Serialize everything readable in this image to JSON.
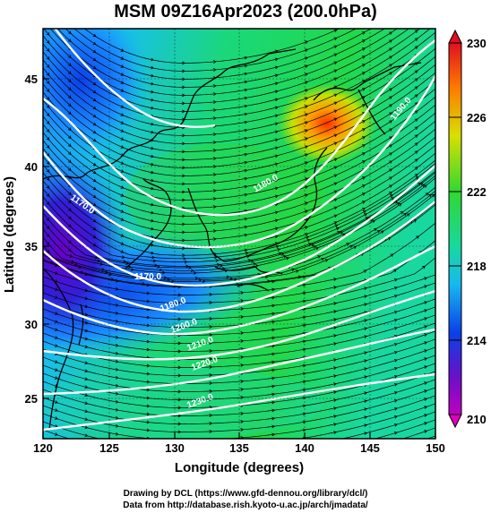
{
  "title": "MSM 09Z16Apr2023 (200.0hPa)",
  "axes": {
    "xlabel": "Longitude (degrees)",
    "ylabel": "Latitude  (degrees)",
    "xticks": [
      "120",
      "125",
      "130",
      "135",
      "140",
      "145",
      "150"
    ],
    "yticks": [
      "45",
      "40",
      "35",
      "30",
      "25"
    ],
    "x_range": [
      120,
      150
    ],
    "y_range": [
      22.4,
      47.6
    ]
  },
  "colorbar": {
    "labels": [
      "230",
      "226",
      "222",
      "218",
      "214",
      "210"
    ],
    "range": [
      210,
      230
    ]
  },
  "contour_labels": [
    "1170.0",
    "1170.0",
    "1180.0",
    "1190.0",
    "1200.0",
    "1210.0",
    "1220.0",
    "1230.0",
    "1240.0",
    "1180.0"
  ],
  "credits": {
    "line1": "Drawing by DCL (https://www.gfd-dennou.org/library/dcl/)",
    "line2": "Data from http://database.rish.kyoto-u.ac.jp/arch/jmadata/"
  },
  "colors": {
    "low": "#8000c0",
    "mid": "#00d800",
    "high": "#ff2000",
    "contour": "#ffffff",
    "coast": "#000000"
  }
}
